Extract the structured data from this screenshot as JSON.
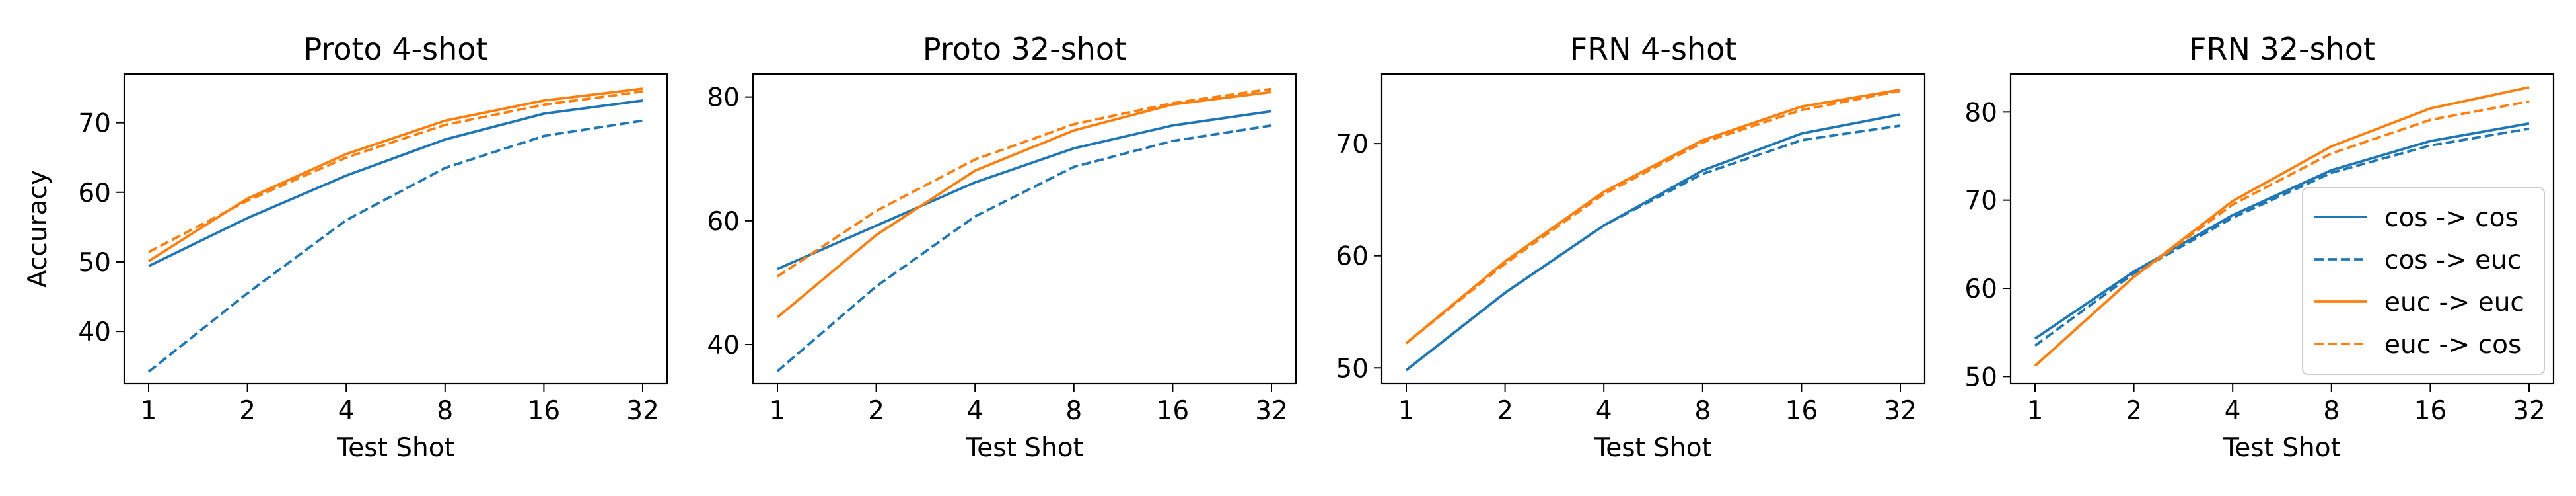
{
  "figure": {
    "ylabel": "Accuracy",
    "legend": {
      "placement": "lower-right",
      "panel": 3,
      "entries": [
        {
          "label": "cos -> cos",
          "series": 0
        },
        {
          "label": "cos -> euc",
          "series": 1
        },
        {
          "label": "euc -> euc",
          "series": 2
        },
        {
          "label": "euc -> cos",
          "series": 3
        }
      ]
    },
    "series_styles": [
      {
        "color": "#1f77b4",
        "dash": "solid"
      },
      {
        "color": "#1f77b4",
        "dash": "dashed"
      },
      {
        "color": "#ff7f0e",
        "dash": "solid"
      },
      {
        "color": "#ff7f0e",
        "dash": "dashed"
      }
    ]
  },
  "chart_data": [
    {
      "type": "line",
      "title": "Proto 4-shot",
      "xlabel": "Test Shot",
      "ylabel": "Accuracy",
      "categories": [
        "1",
        "2",
        "4",
        "8",
        "16",
        "32"
      ],
      "ylim": [
        32.5,
        77
      ],
      "yticks": [
        40,
        50,
        60,
        70
      ],
      "grid": false,
      "series": [
        {
          "name": "cos -> cos",
          "values": [
            49.4,
            56.3,
            62.4,
            67.6,
            71.3,
            73.2
          ]
        },
        {
          "name": "cos -> euc",
          "values": [
            34.2,
            45.5,
            56.0,
            63.5,
            68.1,
            70.3
          ]
        },
        {
          "name": "euc -> euc",
          "values": [
            50.1,
            59.1,
            65.5,
            70.3,
            73.2,
            74.9
          ]
        },
        {
          "name": "euc -> cos",
          "values": [
            51.4,
            58.8,
            65.0,
            69.7,
            72.6,
            74.5
          ]
        }
      ]
    },
    {
      "type": "line",
      "title": "Proto 32-shot",
      "xlabel": "Test Shot",
      "categories": [
        "1",
        "2",
        "4",
        "8",
        "16",
        "32"
      ],
      "ylim": [
        33.7,
        83.7
      ],
      "yticks": [
        40,
        60,
        80
      ],
      "grid": false,
      "series": [
        {
          "name": "cos -> cos",
          "values": [
            52.2,
            59.2,
            66.2,
            71.7,
            75.4,
            77.7
          ]
        },
        {
          "name": "cos -> euc",
          "values": [
            35.7,
            49.4,
            60.7,
            68.7,
            72.9,
            75.4
          ]
        },
        {
          "name": "euc -> euc",
          "values": [
            44.4,
            57.7,
            68.1,
            74.6,
            78.8,
            80.8
          ]
        },
        {
          "name": "euc -> cos",
          "values": [
            51.0,
            61.6,
            69.9,
            75.6,
            79.0,
            81.3
          ]
        }
      ]
    },
    {
      "type": "line",
      "title": "FRN 4-shot",
      "xlabel": "Test Shot",
      "categories": [
        "1",
        "2",
        "4",
        "8",
        "16",
        "32"
      ],
      "ylim": [
        48.6,
        76.2
      ],
      "yticks": [
        50,
        60,
        70
      ],
      "grid": false,
      "series": [
        {
          "name": "cos -> cos",
          "values": [
            49.8,
            56.7,
            62.7,
            67.6,
            70.9,
            72.6
          ]
        },
        {
          "name": "cos -> euc",
          "values": [
            49.8,
            56.7,
            62.7,
            67.3,
            70.3,
            71.6
          ]
        },
        {
          "name": "euc -> euc",
          "values": [
            52.2,
            59.5,
            65.7,
            70.3,
            73.3,
            74.8
          ]
        },
        {
          "name": "euc -> cos",
          "values": [
            52.2,
            59.3,
            65.5,
            70.1,
            73.0,
            74.7
          ]
        }
      ]
    },
    {
      "type": "line",
      "title": "FRN 32-shot",
      "xlabel": "Test Shot",
      "categories": [
        "1",
        "2",
        "4",
        "8",
        "16",
        "32"
      ],
      "ylim": [
        49.2,
        84.3
      ],
      "yticks": [
        50,
        60,
        70,
        80
      ],
      "grid": false,
      "series": [
        {
          "name": "cos -> cos",
          "values": [
            54.3,
            61.9,
            68.3,
            73.4,
            76.7,
            78.7
          ]
        },
        {
          "name": "cos -> euc",
          "values": [
            53.5,
            61.7,
            68.0,
            73.1,
            76.2,
            78.1
          ]
        },
        {
          "name": "euc -> euc",
          "values": [
            51.2,
            61.3,
            69.9,
            76.1,
            80.4,
            82.8
          ]
        },
        {
          "name": "euc -> cos",
          "values": [
            51.2,
            61.3,
            69.5,
            75.3,
            79.1,
            81.2
          ]
        }
      ]
    }
  ]
}
